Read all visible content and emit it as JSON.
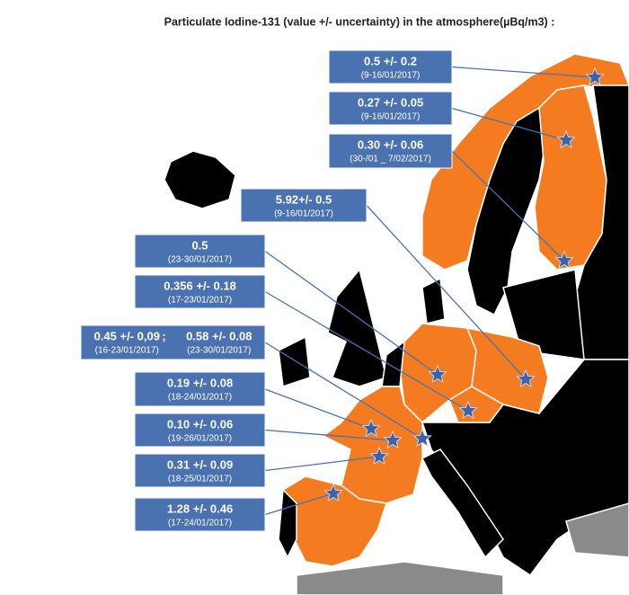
{
  "title": "Particulate Iodine-131 (value +/- uncertainty) in the atmosphere(µBq/m3) :",
  "callouts": [
    {
      "value": "0.5 +/- 0.2",
      "date": "(9-16/01/2017)"
    },
    {
      "value": "0.27 +/- 0.05",
      "date": "(9-16/01/2017)"
    },
    {
      "value": "0.30 +/- 0.06",
      "date": "(30-/01 _ 7/02/2017)"
    },
    {
      "value": "5.92+/- 0.5",
      "date": "(9-16/01/2017)"
    },
    {
      "value": "0.5",
      "date": "(23-30/01/2017)"
    },
    {
      "value": "0.356 +/- 0.18",
      "date": "(17-23/01/2017)"
    },
    {
      "value": "0.45 +/- 0,09",
      "date": "(16-23/01/2017)",
      "separator": ";",
      "value2": "0.58 +/- 0.08",
      "date2": "(23-30/01/2017)"
    },
    {
      "value": "0.19 +/- 0.08",
      "date": "(18-24/01/2017)"
    },
    {
      "value": "0.10 +/- 0.06",
      "date": "(19-26/01/2017)"
    },
    {
      "value": "0.31 +/- 0.09",
      "date": "(18-25/01/2017)"
    },
    {
      "value": "1.28 +/- 0.46",
      "date": "(17-24/01/2017)"
    }
  ]
}
